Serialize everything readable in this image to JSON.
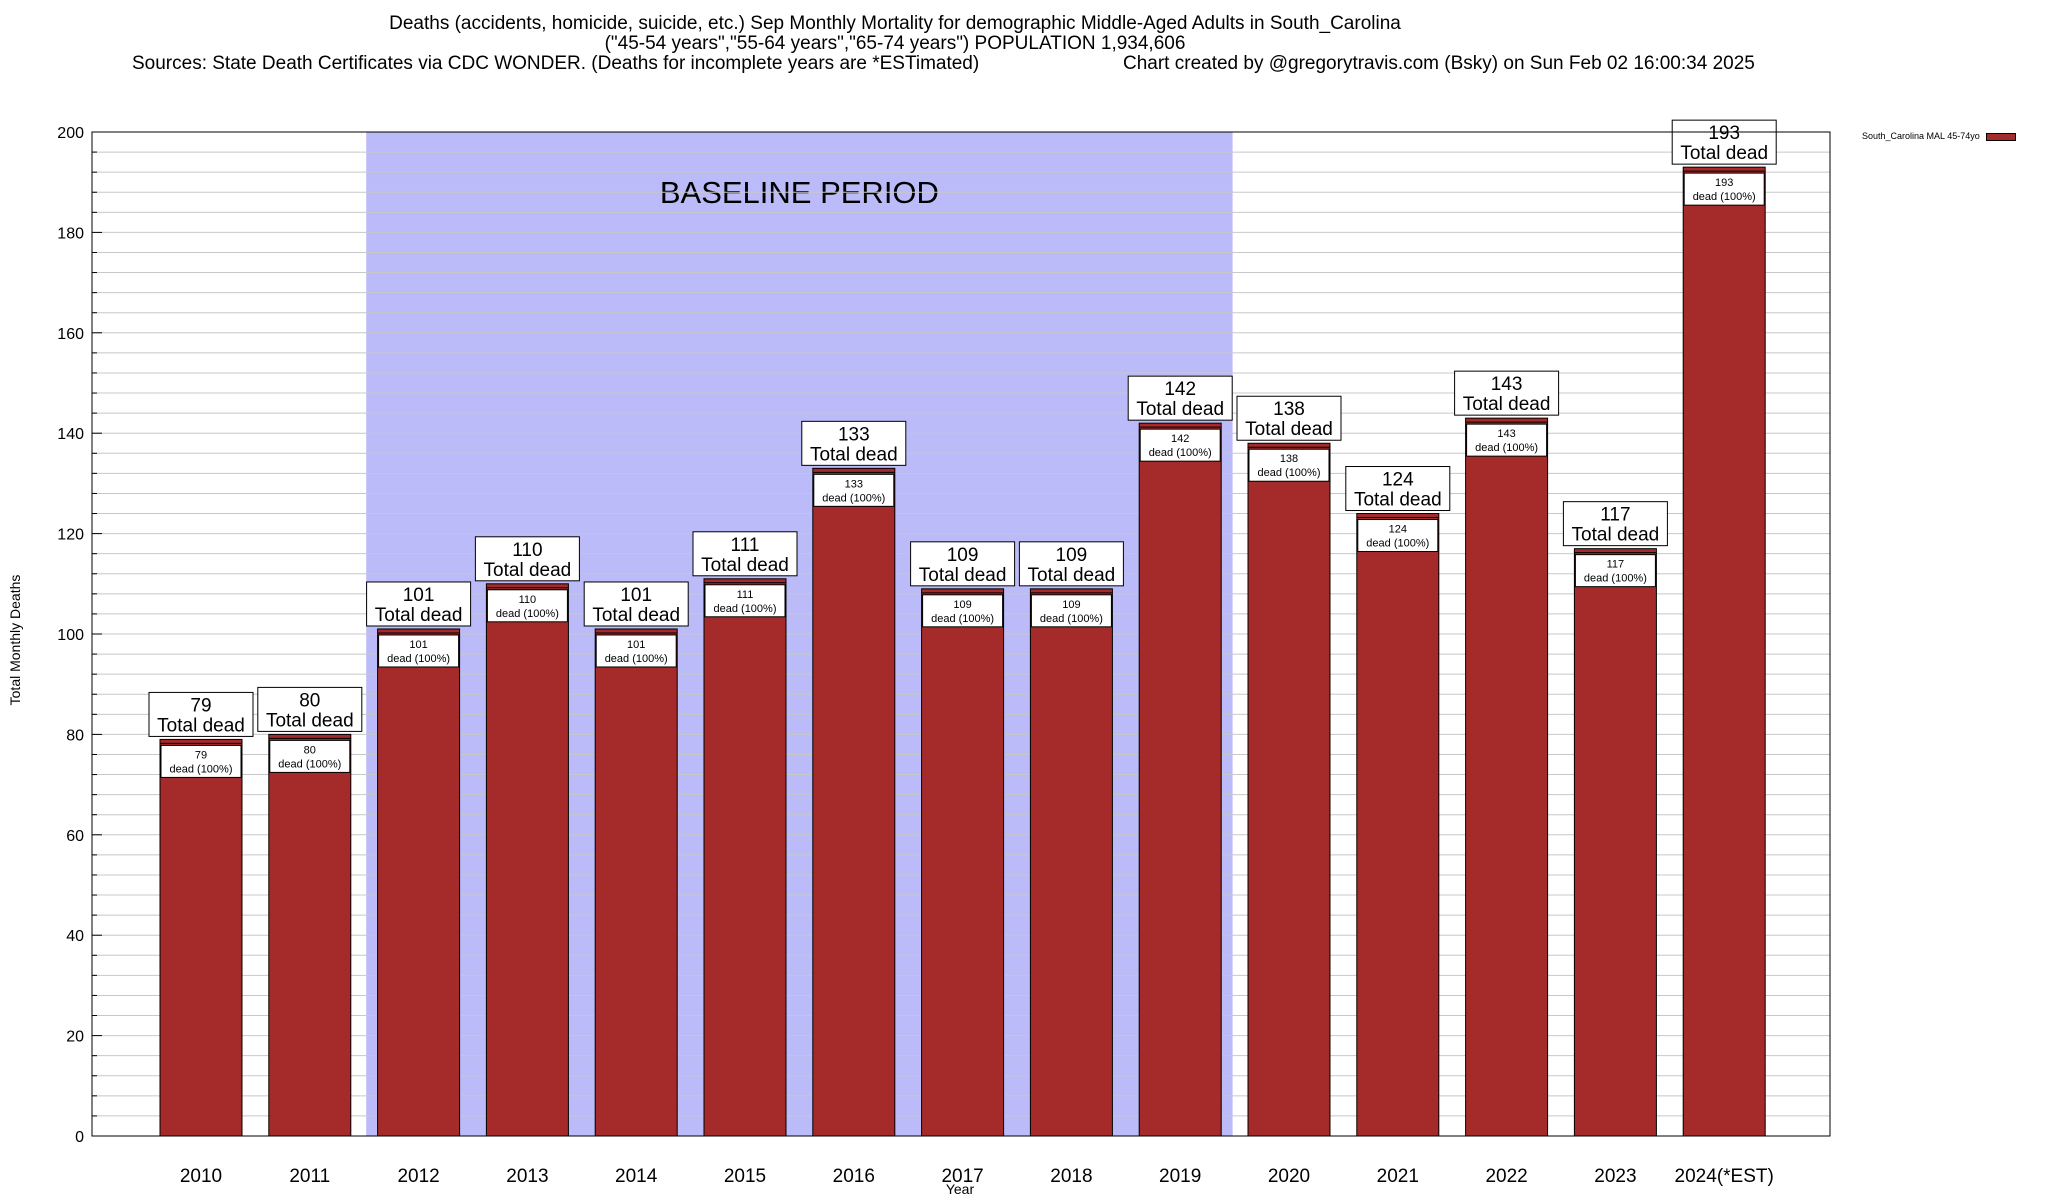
{
  "title": {
    "line1": "Deaths (accidents, homicide, suicide, etc.) Sep Monthly Mortality for demographic Middle-Aged Adults in South_Carolina",
    "line2": "(\"45-54 years\",\"55-64 years\",\"65-74 years\") POPULATION 1,934,606",
    "line3": "Sources: State Death Certificates via CDC WONDER. (Deaths for incomplete years are *ESTimated)",
    "credit": "Chart created by @gregorytravis.com (Bsky) on Sun Feb 02 16:00:34 2025"
  },
  "colors": {
    "bar": "#a52a2a",
    "baseline_band": "#bbbbf9",
    "grid": "#c8c8c8"
  },
  "chart_data": {
    "type": "bar",
    "xlabel": "Year",
    "ylabel": "Total Monthly Deaths",
    "ylim": [
      0,
      200
    ],
    "yticks": [
      0,
      20,
      40,
      60,
      80,
      100,
      120,
      140,
      160,
      180,
      200
    ],
    "grid": true,
    "legend_position": "top-right",
    "categories": [
      "2010",
      "2011",
      "2012",
      "2013",
      "2014",
      "2015",
      "2016",
      "2017",
      "2018",
      "2019",
      "2020",
      "2021",
      "2022",
      "2023",
      "2024(*EST)"
    ],
    "series": [
      {
        "name": "South_Carolina MAL 45-74yo",
        "values": [
          79,
          80,
          101,
          110,
          101,
          111,
          133,
          109,
          109,
          142,
          138,
          124,
          143,
          117,
          193
        ]
      }
    ],
    "total_label_suffix": "Total dead",
    "inner_label_suffix": "dead (100%)",
    "baseline": {
      "label": "BASELINE PERIOD",
      "from": "2012",
      "to": "2019"
    }
  }
}
